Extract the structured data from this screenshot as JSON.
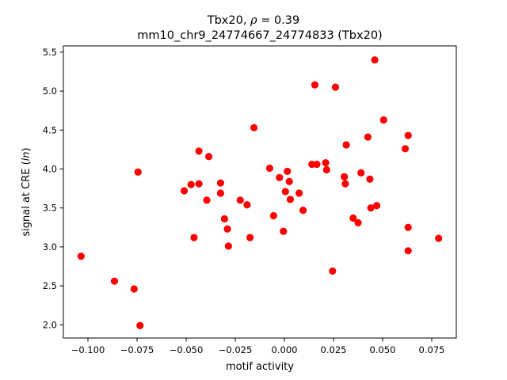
{
  "chart_data": {
    "type": "scatter",
    "title_line1_prefix": "Tbx20, ",
    "title_rho_symbol": "ρ",
    "title_rho_value": " = 0.39",
    "title_line2": "mm10_chr9_24774667_24774833 (Tbx20)",
    "xlabel": "motif activity",
    "ylabel_prefix": "signal at CRE (",
    "ylabel_ln": "ln",
    "ylabel_suffix": ")",
    "xlim": [
      -0.1125,
      0.0875
    ],
    "ylim": [
      1.83,
      5.58
    ],
    "xticks": [
      -0.1,
      -0.075,
      -0.05,
      -0.025,
      0.0,
      0.025,
      0.05,
      0.075
    ],
    "xtick_labels": [
      "−0.100",
      "−0.075",
      "−0.050",
      "−0.025",
      "0.000",
      "0.025",
      "0.050",
      "0.075"
    ],
    "yticks": [
      2.0,
      2.5,
      3.0,
      3.5,
      4.0,
      4.5,
      5.0,
      5.5
    ],
    "ytick_labels": [
      "2.0",
      "2.5",
      "3.0",
      "3.5",
      "4.0",
      "4.5",
      "5.0",
      "5.5"
    ],
    "grid": false,
    "marker_color": "#ff0000",
    "points": [
      {
        "x": -0.1035,
        "y": 2.88
      },
      {
        "x": -0.0865,
        "y": 2.56
      },
      {
        "x": -0.0765,
        "y": 2.46
      },
      {
        "x": -0.0735,
        "y": 1.99
      },
      {
        "x": -0.0745,
        "y": 3.96
      },
      {
        "x": -0.051,
        "y": 3.72
      },
      {
        "x": -0.0475,
        "y": 3.8
      },
      {
        "x": -0.046,
        "y": 3.12
      },
      {
        "x": -0.0435,
        "y": 4.23
      },
      {
        "x": -0.0435,
        "y": 3.81
      },
      {
        "x": -0.0395,
        "y": 3.6
      },
      {
        "x": -0.0385,
        "y": 4.16
      },
      {
        "x": -0.0325,
        "y": 3.82
      },
      {
        "x": -0.0325,
        "y": 3.69
      },
      {
        "x": -0.0305,
        "y": 3.36
      },
      {
        "x": -0.029,
        "y": 3.23
      },
      {
        "x": -0.0285,
        "y": 3.01
      },
      {
        "x": -0.0225,
        "y": 3.6
      },
      {
        "x": -0.019,
        "y": 3.54
      },
      {
        "x": -0.0175,
        "y": 3.12
      },
      {
        "x": -0.0155,
        "y": 4.53
      },
      {
        "x": -0.0075,
        "y": 4.01
      },
      {
        "x": -0.0055,
        "y": 3.4
      },
      {
        "x": -0.0025,
        "y": 3.89
      },
      {
        "x": -0.0005,
        "y": 3.2
      },
      {
        "x": 0.0005,
        "y": 3.71
      },
      {
        "x": 0.0015,
        "y": 3.97
      },
      {
        "x": 0.0025,
        "y": 3.84
      },
      {
        "x": 0.003,
        "y": 3.61
      },
      {
        "x": 0.0075,
        "y": 3.69
      },
      {
        "x": 0.0095,
        "y": 3.47
      },
      {
        "x": 0.014,
        "y": 4.06
      },
      {
        "x": 0.0155,
        "y": 5.08
      },
      {
        "x": 0.0165,
        "y": 4.06
      },
      {
        "x": 0.021,
        "y": 4.08
      },
      {
        "x": 0.0215,
        "y": 3.99
      },
      {
        "x": 0.0245,
        "y": 2.69
      },
      {
        "x": 0.026,
        "y": 5.05
      },
      {
        "x": 0.0305,
        "y": 3.9
      },
      {
        "x": 0.031,
        "y": 3.81
      },
      {
        "x": 0.0315,
        "y": 4.31
      },
      {
        "x": 0.035,
        "y": 3.37
      },
      {
        "x": 0.0375,
        "y": 3.31
      },
      {
        "x": 0.039,
        "y": 3.95
      },
      {
        "x": 0.0425,
        "y": 4.41
      },
      {
        "x": 0.0435,
        "y": 3.87
      },
      {
        "x": 0.044,
        "y": 3.5
      },
      {
        "x": 0.046,
        "y": 5.4
      },
      {
        "x": 0.047,
        "y": 3.53
      },
      {
        "x": 0.0505,
        "y": 4.63
      },
      {
        "x": 0.0615,
        "y": 4.26
      },
      {
        "x": 0.063,
        "y": 4.43
      },
      {
        "x": 0.063,
        "y": 3.25
      },
      {
        "x": 0.063,
        "y": 2.95
      },
      {
        "x": 0.0785,
        "y": 3.11
      }
    ]
  }
}
